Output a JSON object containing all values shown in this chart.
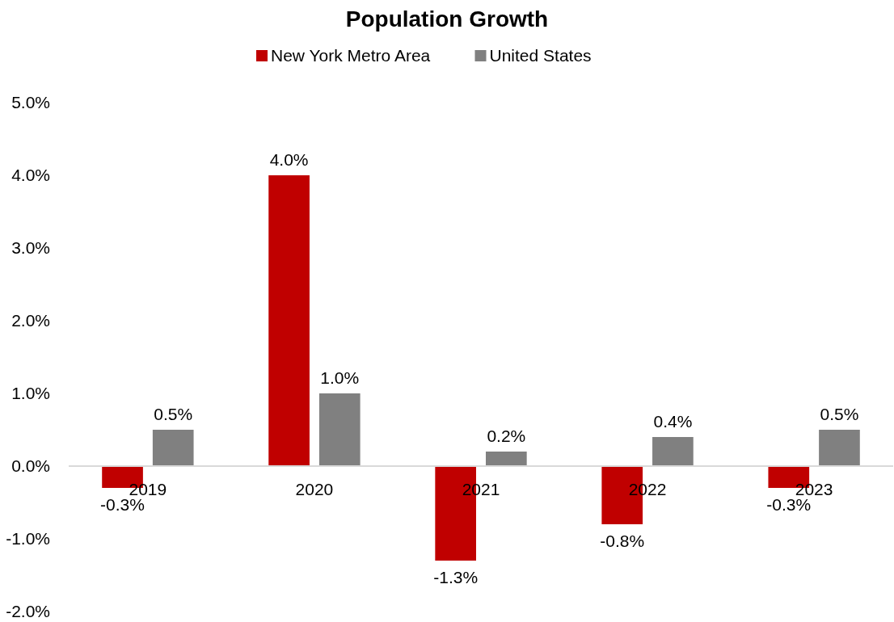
{
  "chart_data": {
    "type": "bar",
    "title": "Population Growth",
    "categories": [
      "2019",
      "2020",
      "2021",
      "2022",
      "2023"
    ],
    "series": [
      {
        "name": "New York Metro Area",
        "color": "#c00000",
        "values": [
          -0.3,
          4.0,
          -1.3,
          -0.8,
          -0.3
        ],
        "value_labels": [
          "-0.3%",
          "4.0%",
          "-1.3%",
          "-0.8%",
          "-0.3%"
        ]
      },
      {
        "name": "United States",
        "color": "#808080",
        "values": [
          0.5,
          1.0,
          0.2,
          0.4,
          0.5
        ],
        "value_labels": [
          "0.5%",
          "1.0%",
          "0.2%",
          "0.4%",
          "0.5%"
        ]
      }
    ],
    "ylim": [
      -2,
      5
    ],
    "yticks": [
      {
        "value": -2,
        "label": "-2.0%"
      },
      {
        "value": -1,
        "label": "-1.0%"
      },
      {
        "value": 0,
        "label": "0.0%"
      },
      {
        "value": 1,
        "label": "1.0%"
      },
      {
        "value": 2,
        "label": "2.0%"
      },
      {
        "value": 3,
        "label": "3.0%"
      },
      {
        "value": 4,
        "label": "4.0%"
      },
      {
        "value": 5,
        "label": "5.0%"
      }
    ],
    "legend": "top",
    "grid": false
  }
}
